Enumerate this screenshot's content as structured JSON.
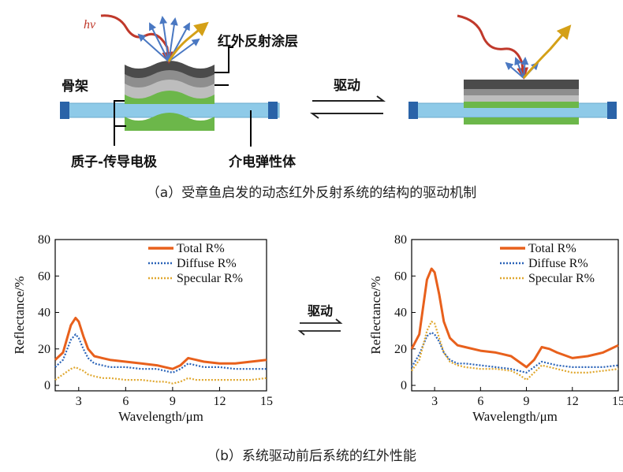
{
  "top": {
    "photon_label": "hv",
    "label_coating": "红外反射涂层",
    "label_frame": "骨架",
    "label_electrode": "质子-传导电极",
    "label_elastomer": "介电弹性体",
    "label_drive": "驱动",
    "caption": "（a）受章鱼启发的动态红外反射系统的结构的驱动机制",
    "colors": {
      "rod": "#8ecae8",
      "rod_end": "#2a63a8",
      "coat_dark": "#4b4b4b",
      "coat_mid": "#8e8e8e",
      "coat_light": "#bdbdbd",
      "green": "#6cb74a",
      "ray_red": "#c0392b",
      "ray_blue": "#4a78c2",
      "ray_gold": "#d4a017"
    }
  },
  "bottom": {
    "label_drive": "驱动",
    "caption": "（b）系统驱动前后系统的红外性能"
  },
  "chart_data": [
    {
      "type": "line",
      "xlabel": "Wavelength/μm",
      "ylabel": "Reflectance/%",
      "xlim": [
        1.5,
        15
      ],
      "ylim": [
        -3,
        80
      ],
      "xticks": [
        3,
        6,
        9,
        12,
        15
      ],
      "yticks": [
        0,
        20,
        40,
        60,
        80
      ],
      "legend": "top-right",
      "series": [
        {
          "name": "Total R%",
          "color": "#e8601c",
          "dash": "solid",
          "x": [
            1.5,
            2.0,
            2.5,
            2.8,
            3.0,
            3.3,
            3.6,
            4.0,
            4.5,
            5.0,
            6.0,
            7.0,
            8.0,
            8.5,
            9.0,
            9.5,
            10.0,
            10.5,
            11.0,
            12.0,
            13.0,
            14.0,
            15.0
          ],
          "y": [
            14,
            18,
            33,
            37,
            35,
            27,
            20,
            16,
            15,
            14,
            13,
            12,
            11,
            10,
            9,
            11,
            15,
            14,
            13,
            12,
            12,
            13,
            14
          ]
        },
        {
          "name": "Diffuse R%",
          "color": "#2a63b8",
          "dash": "dot",
          "x": [
            1.5,
            2.0,
            2.5,
            2.8,
            3.0,
            3.3,
            3.6,
            4.0,
            4.5,
            5.0,
            6.0,
            7.0,
            8.0,
            8.5,
            9.0,
            9.5,
            10.0,
            10.5,
            11.0,
            12.0,
            13.0,
            14.0,
            15.0
          ],
          "y": [
            10,
            14,
            25,
            28,
            26,
            20,
            15,
            12,
            11,
            10,
            10,
            9,
            9,
            8,
            7,
            9,
            12,
            11,
            10,
            10,
            9,
            9,
            9
          ]
        },
        {
          "name": "Specular R%",
          "color": "#e0a830",
          "dash": "dot",
          "x": [
            1.5,
            2.0,
            2.5,
            2.8,
            3.0,
            3.3,
            3.6,
            4.0,
            4.5,
            5.0,
            6.0,
            7.0,
            8.0,
            8.5,
            9.0,
            9.5,
            10.0,
            10.5,
            11.0,
            12.0,
            13.0,
            14.0,
            15.0
          ],
          "y": [
            3,
            6,
            9,
            10,
            9,
            8,
            6,
            5,
            4,
            4,
            3,
            3,
            2,
            2,
            1,
            2,
            4,
            3,
            3,
            3,
            3,
            3,
            4
          ]
        }
      ]
    },
    {
      "type": "line",
      "xlabel": "Wavelength/μm",
      "ylabel": "Reflectance/%",
      "xlim": [
        1.5,
        15
      ],
      "ylim": [
        -3,
        80
      ],
      "xticks": [
        3,
        6,
        9,
        12,
        15
      ],
      "yticks": [
        0,
        20,
        40,
        60,
        80
      ],
      "legend": "top-right",
      "series": [
        {
          "name": "Total R%",
          "color": "#e8601c",
          "dash": "solid",
          "x": [
            1.5,
            2.0,
            2.5,
            2.8,
            3.0,
            3.3,
            3.6,
            4.0,
            4.5,
            5.0,
            6.0,
            7.0,
            8.0,
            8.5,
            9.0,
            9.5,
            10.0,
            10.5,
            11.0,
            12.0,
            13.0,
            14.0,
            15.0
          ],
          "y": [
            20,
            28,
            58,
            64,
            62,
            50,
            35,
            26,
            22,
            21,
            19,
            18,
            16,
            13,
            10,
            14,
            21,
            20,
            18,
            15,
            16,
            18,
            22
          ]
        },
        {
          "name": "Diffuse R%",
          "color": "#2a63b8",
          "dash": "dot",
          "x": [
            1.5,
            2.0,
            2.5,
            2.8,
            3.0,
            3.3,
            3.6,
            4.0,
            4.5,
            5.0,
            6.0,
            7.0,
            8.0,
            8.5,
            9.0,
            9.5,
            10.0,
            10.5,
            11.0,
            12.0,
            13.0,
            14.0,
            15.0
          ],
          "y": [
            10,
            17,
            27,
            29,
            28,
            24,
            18,
            14,
            12,
            12,
            11,
            10,
            9,
            8,
            7,
            10,
            13,
            12,
            11,
            10,
            10,
            10,
            11
          ]
        },
        {
          "name": "Specular R%",
          "color": "#e0a830",
          "dash": "dot",
          "x": [
            1.5,
            2.0,
            2.5,
            2.8,
            3.0,
            3.3,
            3.6,
            4.0,
            4.5,
            5.0,
            6.0,
            7.0,
            8.0,
            8.5,
            9.0,
            9.5,
            10.0,
            10.5,
            11.0,
            12.0,
            13.0,
            14.0,
            15.0
          ],
          "y": [
            8,
            14,
            30,
            35,
            34,
            26,
            18,
            13,
            11,
            10,
            9,
            9,
            8,
            6,
            3,
            7,
            11,
            10,
            9,
            7,
            7,
            8,
            9
          ]
        }
      ]
    }
  ]
}
